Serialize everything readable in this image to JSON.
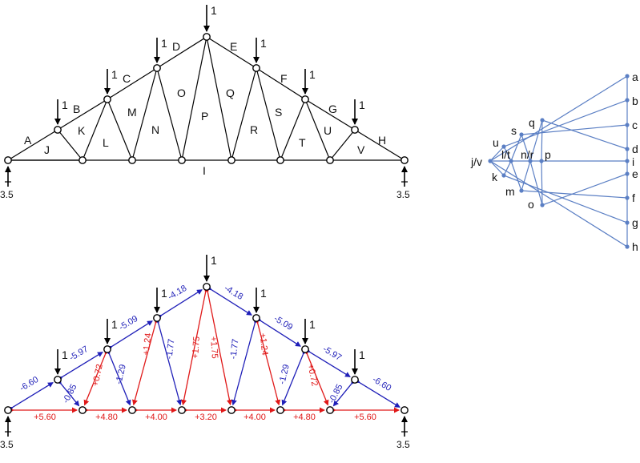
{
  "colors": {
    "member": "#000000",
    "compression": "#1f1fb8",
    "tension": "#e01818",
    "force_polygon": "#5b7fc4",
    "node_fill": "#ffffff"
  },
  "truss": {
    "load_label": "1",
    "reaction_labels": [
      "3.5",
      "3.5"
    ],
    "zones": {
      "A": "A",
      "B": "B",
      "C": "C",
      "D": "D",
      "E": "E",
      "F": "F",
      "G": "G",
      "H": "H",
      "I": "I",
      "J": "J",
      "K": "K",
      "L": "L",
      "M": "M",
      "N": "N",
      "O": "O",
      "P": "P",
      "Q": "Q",
      "R": "R",
      "S": "S",
      "T": "T",
      "U": "U",
      "V": "V"
    }
  },
  "forces": {
    "top_chord": [
      "-6.60",
      "-5.97",
      "-5.09",
      "-4.18",
      "-4.18",
      "-5.09",
      "-5.97",
      "-6.60"
    ],
    "bottom_chord": [
      "+5.60",
      "+4.80",
      "+4.00",
      "+3.20",
      "+4.00",
      "+4.80",
      "+5.60"
    ],
    "webs": {
      "w1": "-0.85",
      "w2": "+0.72",
      "w3": "-1.29",
      "w4": "+1.24",
      "w5": "-1.77",
      "w6": "+1.75",
      "w7": "+1.75",
      "w8": "-1.77",
      "w9": "+1.24",
      "w10": "-1.29",
      "w11": "+0.72",
      "w12": "-0.85"
    }
  },
  "force_polygon": {
    "load_points": [
      "a",
      "b",
      "c",
      "d",
      "e",
      "f",
      "g",
      "h",
      "i"
    ],
    "inner_points": {
      "jv": "j/v",
      "kl": "l/t",
      "nr": "n/r",
      "p": "p",
      "u": "u",
      "s": "s",
      "q": "q",
      "k": "k",
      "m": "m",
      "o": "o"
    }
  }
}
